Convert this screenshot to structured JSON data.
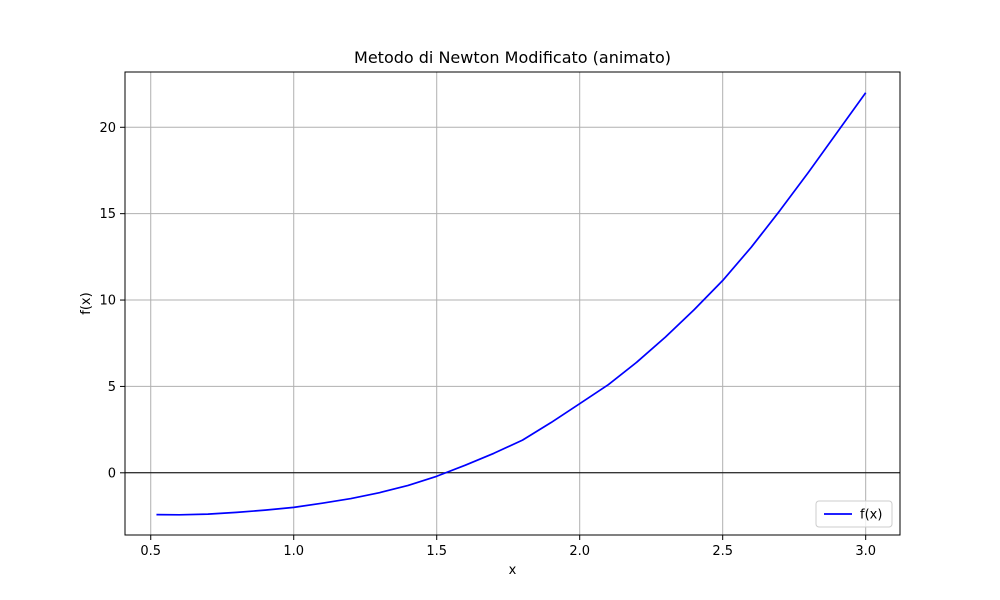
{
  "chart_data": {
    "type": "line",
    "title": "Metodo di Newton Modificato (animato)",
    "xlabel": "x",
    "ylabel": "f(x)",
    "xlim": [
      0.41,
      3.12
    ],
    "ylim": [
      -3.6,
      23.2
    ],
    "x_ticks": [
      0.5,
      1.0,
      1.5,
      2.0,
      2.5,
      3.0
    ],
    "x_tick_labels": [
      "0.5",
      "1.0",
      "1.5",
      "2.0",
      "2.5",
      "3.0"
    ],
    "y_ticks": [
      0,
      5,
      10,
      15,
      20
    ],
    "y_tick_labels": [
      "0",
      "5",
      "10",
      "15",
      "20"
    ],
    "grid": true,
    "legend_position": "lower-right",
    "reference_line": {
      "y": 0,
      "color": "#000000"
    },
    "series": [
      {
        "name": "f(x)",
        "color": "#0000ff",
        "x": [
          0.52,
          0.6,
          0.7,
          0.8,
          0.9,
          1.0,
          1.1,
          1.2,
          1.3,
          1.4,
          1.5,
          1.6,
          1.7,
          1.8,
          1.9,
          2.0,
          2.1,
          2.2,
          2.3,
          2.4,
          2.5,
          2.6,
          2.7,
          2.8,
          2.9,
          3.0
        ],
        "y": [
          -2.42,
          -2.43,
          -2.39,
          -2.29,
          -2.16,
          -2.0,
          -1.76,
          -1.49,
          -1.15,
          -0.73,
          -0.2,
          0.44,
          1.13,
          1.89,
          2.91,
          4.0,
          5.1,
          6.41,
          7.86,
          9.44,
          11.13,
          13.06,
          15.18,
          17.4,
          19.7,
          22.0
        ]
      }
    ]
  }
}
